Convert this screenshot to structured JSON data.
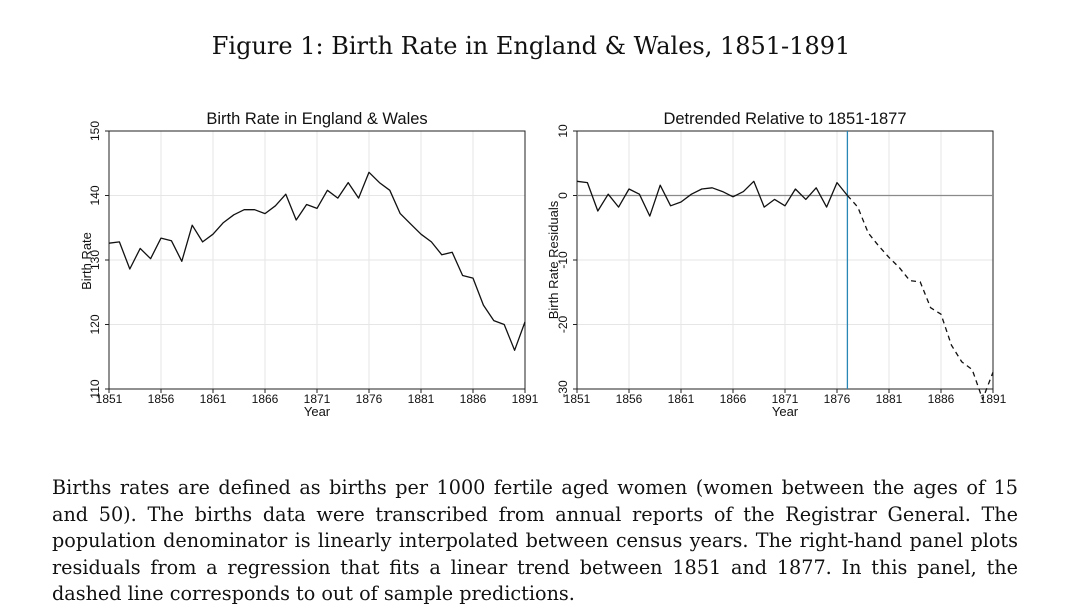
{
  "figure_title": "Figure 1: Birth Rate in England & Wales, 1851-1891",
  "caption": "Births rates are defined as births per 1000 fertile aged women (women between the ages of 15 and 50). The births data were transcribed from annual reports of the Registrar General. The population denominator is linearly interpolated between census years. The right-hand panel plots residuals from a regression that fits a linear trend between 1851 and 1877. In this panel, the dashed line corresponds to out of sample predictions.",
  "chart_data": [
    {
      "type": "line",
      "title": "Birth Rate in England & Wales",
      "xlabel": "Year",
      "ylabel": "Birth Rate",
      "xlim": [
        1851,
        1891
      ],
      "ylim": [
        110,
        150
      ],
      "xticks": [
        "1851",
        "1856",
        "1861",
        "1866",
        "1871",
        "1876",
        "1881",
        "1886",
        "1891"
      ],
      "yticks": [
        "110",
        "120",
        "130",
        "140",
        "150"
      ],
      "grid": true,
      "x": [
        1851,
        1852,
        1853,
        1854,
        1855,
        1856,
        1857,
        1858,
        1859,
        1860,
        1861,
        1862,
        1863,
        1864,
        1865,
        1866,
        1867,
        1868,
        1869,
        1870,
        1871,
        1872,
        1873,
        1874,
        1875,
        1876,
        1877,
        1878,
        1879,
        1880,
        1881,
        1882,
        1883,
        1884,
        1885,
        1886,
        1887,
        1888,
        1889,
        1890,
        1891
      ],
      "series": [
        {
          "style": "solid",
          "values": [
            132.6,
            132.8,
            128.6,
            131.8,
            130.2,
            133.4,
            133.0,
            129.8,
            135.4,
            132.8,
            134.0,
            135.8,
            137.0,
            137.8,
            137.8,
            137.2,
            138.4,
            140.2,
            136.2,
            138.6,
            138.0,
            140.8,
            139.6,
            142.0,
            139.6,
            143.6,
            142.0,
            140.8,
            137.2,
            135.6,
            134.0,
            132.8,
            130.8,
            131.2,
            127.6,
            127.2,
            123.0,
            120.6,
            120.0,
            116.0,
            120.4
          ]
        }
      ]
    },
    {
      "type": "line",
      "title": "Detrended Relative to 1851-1877",
      "xlabel": "Year",
      "ylabel": "Birth Rate Residuals",
      "xlim": [
        1851,
        1891
      ],
      "ylim": [
        -30,
        10
      ],
      "xticks": [
        "1851",
        "1856",
        "1861",
        "1866",
        "1871",
        "1876",
        "1881",
        "1886",
        "1891"
      ],
      "yticks": [
        "-30",
        "-20",
        "-10",
        "0",
        "10"
      ],
      "grid": true,
      "zero_line": 0,
      "vertical_line": 1877,
      "series": [
        {
          "style": "solid",
          "x": [
            1851,
            1852,
            1853,
            1854,
            1855,
            1856,
            1857,
            1858,
            1859,
            1860,
            1861,
            1862,
            1863,
            1864,
            1865,
            1866,
            1867,
            1868,
            1869,
            1870,
            1871,
            1872,
            1873,
            1874,
            1875,
            1876,
            1877
          ],
          "values": [
            2.2,
            2.0,
            -2.4,
            0.2,
            -1.8,
            1.0,
            0.2,
            -3.2,
            1.6,
            -1.6,
            -1.0,
            0.2,
            1.0,
            1.2,
            0.6,
            -0.2,
            0.6,
            2.2,
            -1.8,
            -0.6,
            -1.6,
            1.0,
            -0.6,
            1.2,
            -1.8,
            2.0,
            0.0
          ]
        },
        {
          "style": "dashed",
          "x": [
            1877,
            1878,
            1879,
            1880,
            1881,
            1882,
            1883,
            1884,
            1885,
            1886,
            1887,
            1888,
            1889,
            1890,
            1891
          ],
          "values": [
            0.0,
            -1.8,
            -5.8,
            -7.8,
            -9.6,
            -11.2,
            -13.2,
            -13.4,
            -17.4,
            -18.4,
            -23.2,
            -25.8,
            -27.0,
            -31.6,
            -27.4
          ]
        }
      ]
    }
  ]
}
